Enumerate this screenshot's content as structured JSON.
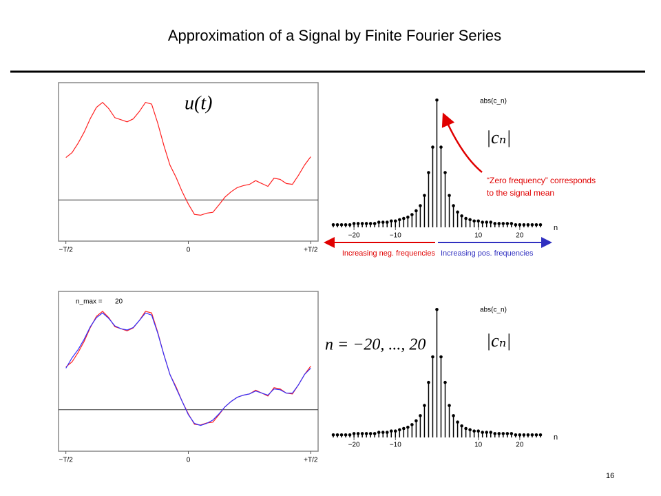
{
  "title": "Approximation of a Signal by Finite Fourier Series",
  "page_number": "16",
  "annotations": {
    "zero_frequency": [
      "“Zero frequency” corresponds",
      "to the signal mean"
    ],
    "neg_frequencies": "Increasing neg. frequencies",
    "pos_frequencies": "Increasing pos. frequencies"
  },
  "chart_data": [
    {
      "type": "line",
      "annotation": "u(t)",
      "x": [
        -0.5,
        -0.475,
        -0.45,
        -0.425,
        -0.4,
        -0.375,
        -0.35,
        -0.325,
        -0.3,
        -0.275,
        -0.25,
        -0.225,
        -0.2,
        -0.175,
        -0.15,
        -0.125,
        -0.1,
        -0.075,
        -0.05,
        -0.025,
        0,
        0.025,
        0.05,
        0.075,
        0.1,
        0.125,
        0.15,
        0.175,
        0.2,
        0.225,
        0.25,
        0.275,
        0.3,
        0.325,
        0.35,
        0.375,
        0.4,
        0.425,
        0.45,
        0.475,
        0.5
      ],
      "xlim": [
        -0.53,
        0.53
      ],
      "xticks": [
        {
          "value": -0.5,
          "label": "−T/2"
        },
        0,
        {
          "value": 0.5,
          "label": "+T/2"
        }
      ],
      "ylim": [
        -1,
        2.85
      ],
      "series": [
        {
          "color": "#ff2020",
          "values": [
            1.03,
            1.15,
            1.38,
            1.65,
            1.98,
            2.25,
            2.37,
            2.22,
            2.0,
            1.95,
            1.9,
            1.97,
            2.15,
            2.37,
            2.33,
            1.87,
            1.33,
            0.85,
            0.55,
            0.2,
            -0.1,
            -0.35,
            -0.37,
            -0.32,
            -0.3,
            -0.12,
            0.07,
            0.2,
            0.3,
            0.35,
            0.38,
            0.47,
            0.4,
            0.33,
            0.53,
            0.5,
            0.4,
            0.38,
            0.6,
            0.85,
            1.05
          ]
        }
      ]
    },
    {
      "type": "stem",
      "ylabel": "abs(c_n)",
      "xlabel": "n",
      "annotation": "|cₙ|",
      "x": [
        -25,
        -24,
        -23,
        -22,
        -21,
        -20,
        -19,
        -18,
        -17,
        -16,
        -15,
        -14,
        -13,
        -12,
        -11,
        -10,
        -9,
        -8,
        -7,
        -6,
        -5,
        -4,
        -3,
        -2,
        -1,
        0,
        1,
        2,
        3,
        4,
        5,
        6,
        7,
        8,
        9,
        10,
        11,
        12,
        13,
        14,
        15,
        16,
        17,
        18,
        19,
        20,
        21,
        22,
        23,
        24,
        25
      ],
      "values": [
        0.02,
        0.02,
        0.02,
        0.02,
        0.02,
        0.03,
        0.03,
        0.03,
        0.03,
        0.03,
        0.03,
        0.04,
        0.04,
        0.04,
        0.05,
        0.05,
        0.06,
        0.07,
        0.08,
        0.1,
        0.13,
        0.17,
        0.25,
        0.43,
        0.63,
        1.0,
        0.63,
        0.43,
        0.25,
        0.17,
        0.12,
        0.09,
        0.07,
        0.06,
        0.05,
        0.05,
        0.04,
        0.04,
        0.04,
        0.03,
        0.03,
        0.03,
        0.03,
        0.03,
        0.02,
        0.02,
        0.02,
        0.02,
        0.02,
        0.02,
        0.02
      ],
      "color": "#000000",
      "xlim": [
        -26,
        27.5
      ],
      "xticks": [
        {
          "value": -20,
          "label": "−20"
        },
        {
          "value": -10,
          "label": "−10"
        },
        10,
        20
      ],
      "ylim": [
        0,
        1.05
      ]
    },
    {
      "type": "line",
      "annotation_label": "n_max =",
      "n_max": 20,
      "x": [
        -0.5,
        -0.475,
        -0.45,
        -0.425,
        -0.4,
        -0.375,
        -0.35,
        -0.325,
        -0.3,
        -0.275,
        -0.25,
        -0.225,
        -0.2,
        -0.175,
        -0.15,
        -0.125,
        -0.1,
        -0.075,
        -0.05,
        -0.025,
        0,
        0.025,
        0.05,
        0.075,
        0.1,
        0.125,
        0.15,
        0.175,
        0.2,
        0.225,
        0.25,
        0.275,
        0.3,
        0.325,
        0.35,
        0.375,
        0.4,
        0.425,
        0.45,
        0.475,
        0.5
      ],
      "xlim": [
        -0.53,
        0.53
      ],
      "xticks": [
        {
          "value": -0.5,
          "label": "−T/2"
        },
        0,
        {
          "value": 0.5,
          "label": "+T/2"
        }
      ],
      "ylim": [
        -1,
        2.85
      ],
      "series": [
        {
          "color": "#ff2020",
          "values": [
            1.03,
            1.15,
            1.38,
            1.65,
            1.98,
            2.25,
            2.37,
            2.22,
            2.0,
            1.95,
            1.9,
            1.97,
            2.15,
            2.37,
            2.33,
            1.87,
            1.33,
            0.85,
            0.55,
            0.2,
            -0.1,
            -0.35,
            -0.37,
            -0.32,
            -0.3,
            -0.12,
            0.07,
            0.2,
            0.3,
            0.35,
            0.38,
            0.47,
            0.4,
            0.33,
            0.53,
            0.5,
            0.4,
            0.38,
            0.6,
            0.85,
            1.05
          ]
        },
        {
          "color": "#3030ff",
          "values": [
            1.0,
            1.25,
            1.45,
            1.7,
            2.0,
            2.22,
            2.33,
            2.2,
            2.02,
            1.95,
            1.92,
            1.98,
            2.15,
            2.33,
            2.28,
            1.85,
            1.33,
            0.85,
            0.52,
            0.2,
            -0.12,
            -0.33,
            -0.38,
            -0.33,
            -0.25,
            -0.1,
            0.07,
            0.2,
            0.3,
            0.35,
            0.38,
            0.45,
            0.4,
            0.35,
            0.5,
            0.48,
            0.4,
            0.4,
            0.6,
            0.85,
            1.0
          ]
        }
      ]
    },
    {
      "type": "stem",
      "ylabel": "abs(c_n)",
      "xlabel": "n",
      "annotation": "|cₙ|",
      "range_annotation": "n = −20, ..., 20",
      "x": [
        -25,
        -24,
        -23,
        -22,
        -21,
        -20,
        -19,
        -18,
        -17,
        -16,
        -15,
        -14,
        -13,
        -12,
        -11,
        -10,
        -9,
        -8,
        -7,
        -6,
        -5,
        -4,
        -3,
        -2,
        -1,
        0,
        1,
        2,
        3,
        4,
        5,
        6,
        7,
        8,
        9,
        10,
        11,
        12,
        13,
        14,
        15,
        16,
        17,
        18,
        19,
        20,
        21,
        22,
        23,
        24,
        25
      ],
      "values": [
        0.02,
        0.02,
        0.02,
        0.02,
        0.02,
        0.03,
        0.03,
        0.03,
        0.03,
        0.03,
        0.03,
        0.04,
        0.04,
        0.04,
        0.05,
        0.05,
        0.06,
        0.07,
        0.08,
        0.1,
        0.13,
        0.17,
        0.25,
        0.43,
        0.63,
        1.0,
        0.63,
        0.43,
        0.25,
        0.17,
        0.12,
        0.09,
        0.07,
        0.06,
        0.05,
        0.05,
        0.04,
        0.04,
        0.04,
        0.03,
        0.03,
        0.03,
        0.03,
        0.03,
        0.02,
        0.02,
        0.02,
        0.02,
        0.02,
        0.02,
        0.02
      ],
      "color": "#000000",
      "xlim": [
        -26,
        27.5
      ],
      "xticks": [
        {
          "value": -20,
          "label": "−20"
        },
        {
          "value": -10,
          "label": "−10"
        },
        10,
        20
      ],
      "ylim": [
        0,
        1.05
      ]
    }
  ]
}
